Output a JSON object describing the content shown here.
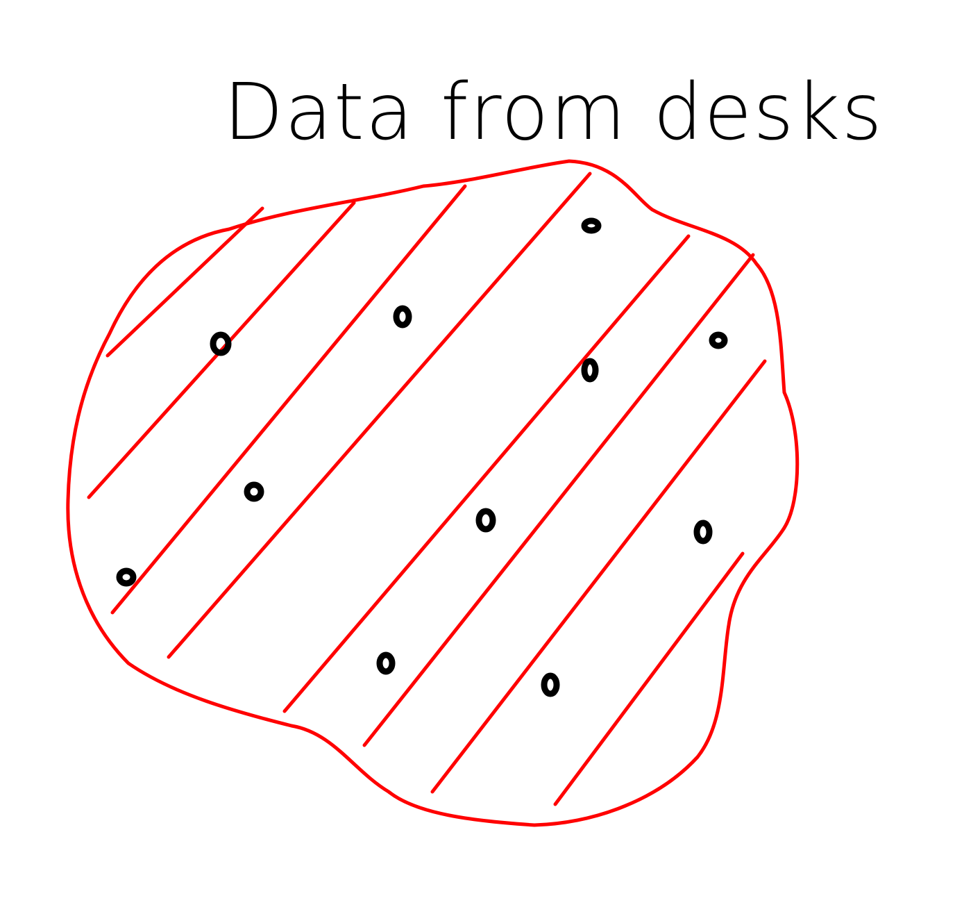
{
  "title": "Data from desks",
  "colors": {
    "region": "#ff0000",
    "dots": "#000000",
    "title": "#000000",
    "background": "#ffffff"
  }
}
